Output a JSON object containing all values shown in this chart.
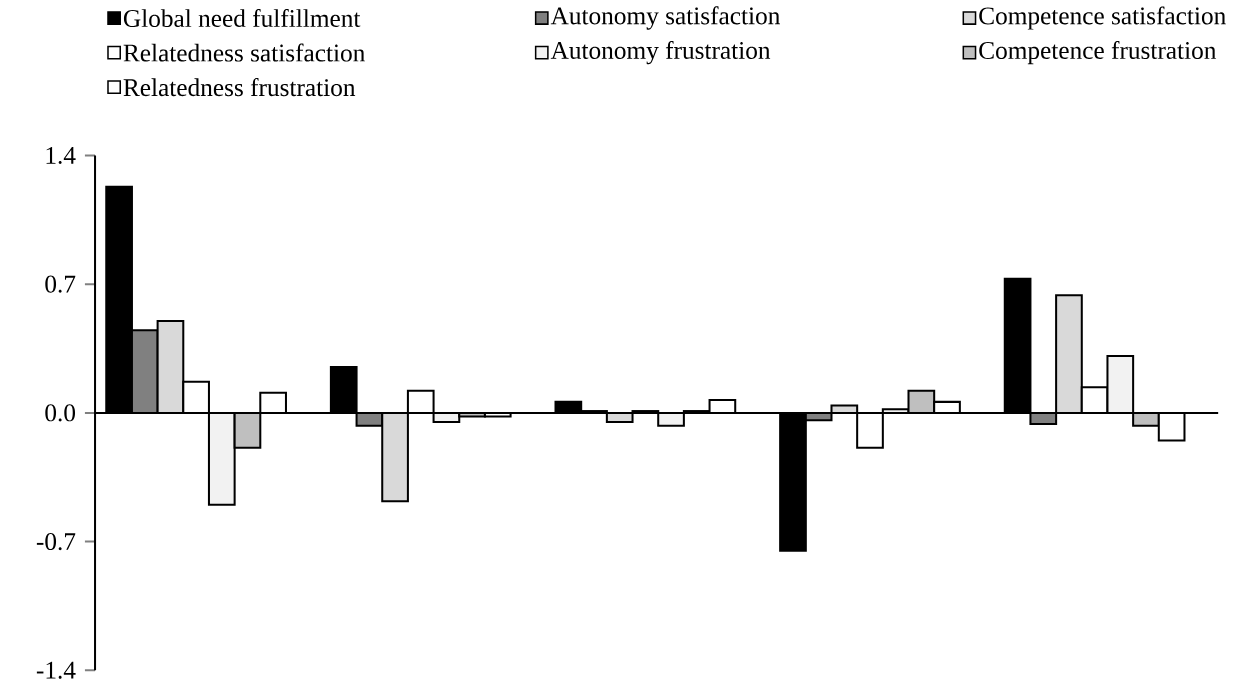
{
  "chart_data": {
    "type": "bar",
    "categories": [
      null,
      null,
      null,
      null,
      null
    ],
    "series": [
      {
        "name": "Global need fulfillment",
        "color": "#000000",
        "values": [
          1.23,
          0.25,
          0.06,
          -0.75,
          0.73
        ]
      },
      {
        "name": "Autonomy satisfaction",
        "color": "#808080",
        "values": [
          0.45,
          -0.07,
          0.01,
          -0.04,
          -0.06
        ]
      },
      {
        "name": "Competence satisfaction",
        "color": "#d9d9d9",
        "values": [
          0.5,
          -0.48,
          -0.05,
          0.04,
          0.64
        ]
      },
      {
        "name": "Relatedness satisfaction",
        "color": "#ffffff",
        "values": [
          0.17,
          0.12,
          0.01,
          -0.19,
          0.14
        ]
      },
      {
        "name": "Autonomy frustration",
        "color": "#f2f2f2",
        "values": [
          -0.5,
          -0.05,
          -0.07,
          0.02,
          0.31
        ]
      },
      {
        "name": "Competence frustration",
        "color": "#bfbfbf",
        "values": [
          -0.19,
          -0.02,
          0.01,
          0.12,
          -0.07
        ]
      },
      {
        "name": "Relatedness frustration",
        "color": "#ffffff",
        "values": [
          0.11,
          -0.02,
          0.07,
          0.06,
          -0.15
        ]
      }
    ],
    "ylim": [
      -1.4,
      1.4
    ],
    "yticks": [
      {
        "value": 1.4,
        "label": "1.4"
      },
      {
        "value": 0.7,
        "label": "0.7"
      },
      {
        "value": 0,
        "label": "0.0"
      },
      {
        "value": -0.7,
        "label": "-0.7"
      },
      {
        "value": -1.4,
        "label": "-1.4"
      }
    ],
    "legend": "top"
  }
}
